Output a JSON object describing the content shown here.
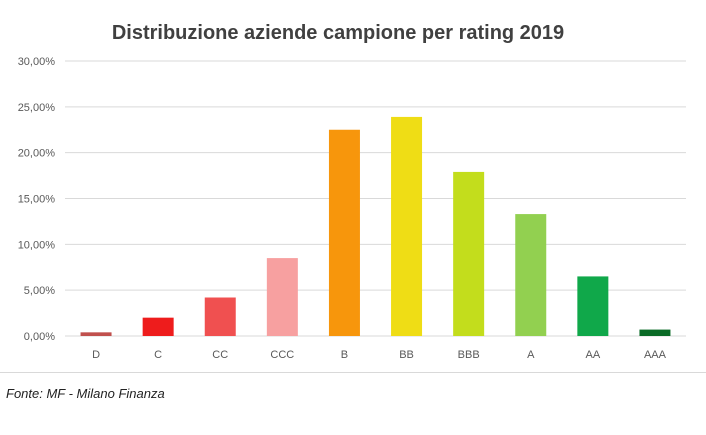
{
  "chart_data": {
    "type": "bar",
    "title": "Distribuzione aziende campione per rating 2019",
    "xlabel": "",
    "ylabel": "",
    "categories": [
      "D",
      "C",
      "CC",
      "CCC",
      "B",
      "BB",
      "BBB",
      "A",
      "AA",
      "AAA"
    ],
    "values": [
      0.4,
      2.0,
      4.2,
      8.5,
      22.5,
      23.9,
      17.9,
      13.3,
      6.5,
      0.7
    ],
    "value_unit": "%",
    "ylim": [
      0,
      30
    ],
    "yticks": [
      "0,00%",
      "5,00%",
      "10,00%",
      "15,00%",
      "20,00%",
      "25,00%",
      "30,00%"
    ],
    "bar_colors": [
      "#c0504d",
      "#ee1c1c",
      "#f05050",
      "#f7a0a0",
      "#f7960c",
      "#efdd15",
      "#c3dd1c",
      "#92d050",
      "#10a84a",
      "#0a6b26"
    ],
    "grid": true,
    "legend": "none"
  },
  "source_note": "Fonte: MF - Milano Finanza",
  "colors": {
    "title": "#404040",
    "tick_text": "#595959",
    "gridline": "#d9d9d9",
    "background": "#ffffff"
  }
}
